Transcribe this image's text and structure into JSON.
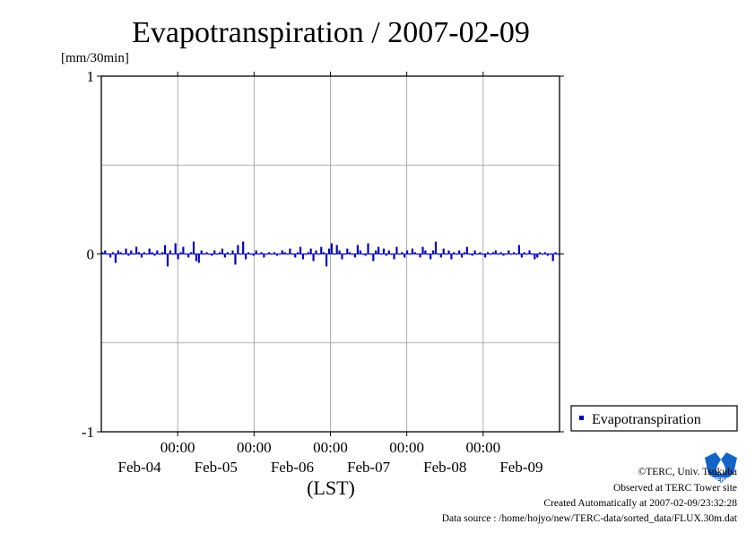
{
  "chart_data": {
    "type": "bar",
    "title": "Evapotranspiration / 2007-02-09",
    "ylabel": "[mm/30min]",
    "xlabel": "(LST)",
    "ylim": [
      -1,
      1
    ],
    "yticks": [
      "1",
      "0",
      "-1"
    ],
    "xticks_time": [
      "00:00",
      "00:00",
      "00:00",
      "00:00",
      "00:00"
    ],
    "xticks_date": [
      "Feb-04",
      "Feb-05",
      "Feb-06",
      "Feb-07",
      "Feb-08",
      "Feb-09"
    ],
    "grid": true,
    "legend": "right",
    "series": [
      {
        "name": "Evapotranspiration",
        "color": "#0000c0",
        "values": [
          0.01,
          0.02,
          0.0,
          -0.02,
          0.01,
          -0.05,
          0.02,
          0.01,
          0.0,
          0.03,
          -0.01,
          0.02,
          0.0,
          0.04,
          0.01,
          -0.02,
          0.01,
          0.0,
          0.03,
          0.01,
          -0.01,
          0.02,
          0.0,
          0.01,
          0.05,
          -0.07,
          0.02,
          0.0,
          0.06,
          -0.03,
          0.01,
          0.04,
          0.0,
          -0.02,
          0.01,
          0.07,
          -0.04,
          -0.05,
          0.02,
          0.0,
          0.01,
          0.0,
          -0.01,
          0.02,
          0.0,
          0.01,
          0.03,
          -0.02,
          0.01,
          0.0,
          0.02,
          -0.06,
          0.05,
          0.0,
          0.07,
          -0.03,
          0.01,
          0.0,
          -0.01,
          0.02,
          0.0,
          0.01,
          -0.02,
          0.0,
          0.01,
          0.0,
          0.01,
          -0.01,
          0.0,
          0.02,
          0.01,
          0.0,
          0.03,
          0.0,
          -0.02,
          0.01,
          0.04,
          -0.03,
          0.0,
          0.01,
          0.03,
          -0.04,
          0.02,
          0.0,
          0.04,
          0.01,
          -0.07,
          0.03,
          0.06,
          0.0,
          0.05,
          0.02,
          -0.03,
          0.0,
          0.03,
          0.01,
          0.0,
          -0.02,
          0.05,
          0.02,
          0.0,
          -0.01,
          0.06,
          0.0,
          -0.04,
          0.02,
          0.04,
          0.0,
          0.03,
          -0.01,
          0.02,
          0.0,
          -0.03,
          0.04,
          0.0,
          0.01,
          -0.02,
          0.02,
          0.0,
          0.03,
          0.01,
          0.0,
          -0.02,
          0.04,
          0.02,
          0.0,
          -0.03,
          0.02,
          0.07,
          0.0,
          -0.02,
          0.03,
          0.0,
          0.02,
          -0.03,
          0.01,
          0.0,
          0.02,
          -0.02,
          0.01,
          0.04,
          0.0,
          -0.01,
          0.02,
          0.0,
          0.01,
          0.0,
          -0.02,
          0.01,
          0.0,
          0.01,
          0.02,
          0.0,
          0.01,
          -0.01,
          0.0,
          0.02,
          0.0,
          0.01,
          0.0,
          0.05,
          -0.02,
          0.01,
          0.0,
          0.02,
          0.0,
          -0.03,
          -0.02,
          0.01,
          0.0,
          0.01,
          -0.01,
          0.0,
          -0.04,
          0.01,
          0.0
        ]
      }
    ]
  },
  "footer": {
    "copyright": "©TERC, Univ. Tsukuba",
    "site": "Observed at TERC Tower site",
    "created": "Created Automatically at 2007-02-09/23:32:28",
    "source": "Data source : /home/hojyo/new/TERC-data/sorted_data/FLUX.30m.dat"
  },
  "logo": {
    "text": "TERC",
    "color": "#1464c8"
  }
}
